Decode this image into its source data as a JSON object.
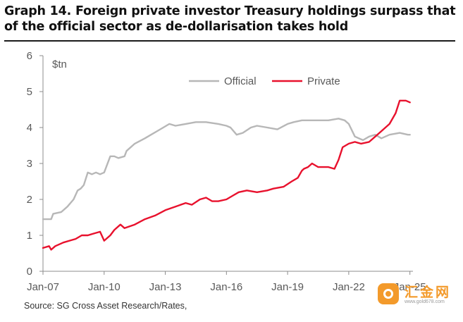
{
  "title": "Graph 14. Foreign private investor Treasury holdings surpass that of the official sector as de-dollarisation takes hold",
  "source": "Source: SG Cross Asset Research/Rates,",
  "watermark": {
    "text": "汇金网",
    "sub": "www.gold678.com"
  },
  "chart_data": {
    "type": "line",
    "ylabel": "$tn",
    "ylim": [
      0,
      6
    ],
    "yticks": [
      0,
      1,
      2,
      3,
      4,
      5,
      6
    ],
    "xlim": [
      2007.0,
      2025.15
    ],
    "xtick_labels": [
      "Jan-07",
      "Jan-10",
      "Jan-13",
      "Jan-16",
      "Jan-19",
      "Jan-22",
      "Jan-25"
    ],
    "xtick_values": [
      2007,
      2010,
      2013,
      2016,
      2019,
      2022,
      2025
    ],
    "grid": false,
    "legend": "top-center",
    "series": [
      {
        "name": "Official",
        "color": "#b7b7b7",
        "x": [
          2007.0,
          2007.4,
          2007.5,
          2007.9,
          2008.2,
          2008.5,
          2008.7,
          2008.85,
          2009.0,
          2009.2,
          2009.4,
          2009.6,
          2009.8,
          2010.0,
          2010.3,
          2010.5,
          2010.7,
          2011.0,
          2011.1,
          2011.5,
          2012.0,
          2012.3,
          2012.6,
          2012.9,
          2013.2,
          2013.5,
          2014.0,
          2014.5,
          2015.0,
          2015.6,
          2016.0,
          2016.2,
          2016.5,
          2016.8,
          2017.2,
          2017.5,
          2018.0,
          2018.5,
          2019.0,
          2019.3,
          2019.7,
          2020.0,
          2020.5,
          2021.0,
          2021.5,
          2021.8,
          2022.0,
          2022.3,
          2022.7,
          2023.0,
          2023.3,
          2023.6,
          2024.0,
          2024.5,
          2024.9,
          2025.0
        ],
        "values": [
          1.45,
          1.45,
          1.6,
          1.65,
          1.8,
          2.0,
          2.25,
          2.3,
          2.4,
          2.75,
          2.7,
          2.75,
          2.7,
          2.75,
          3.2,
          3.2,
          3.15,
          3.2,
          3.35,
          3.55,
          3.7,
          3.8,
          3.9,
          4.0,
          4.1,
          4.05,
          4.1,
          4.15,
          4.15,
          4.1,
          4.05,
          4.0,
          3.8,
          3.85,
          4.0,
          4.05,
          4.0,
          3.95,
          4.1,
          4.15,
          4.2,
          4.2,
          4.2,
          4.2,
          4.25,
          4.2,
          4.1,
          3.75,
          3.65,
          3.75,
          3.8,
          3.7,
          3.8,
          3.85,
          3.8,
          3.8
        ]
      },
      {
        "name": "Private",
        "color": "#e8112d",
        "x": [
          2007.0,
          2007.3,
          2007.4,
          2007.6,
          2008.0,
          2008.3,
          2008.6,
          2008.9,
          2009.2,
          2009.5,
          2009.8,
          2010.0,
          2010.3,
          2010.5,
          2010.8,
          2011.0,
          2011.5,
          2012.0,
          2012.5,
          2013.0,
          2013.5,
          2014.0,
          2014.3,
          2014.7,
          2015.0,
          2015.3,
          2015.6,
          2016.0,
          2016.3,
          2016.6,
          2017.0,
          2017.5,
          2018.0,
          2018.3,
          2018.8,
          2019.2,
          2019.5,
          2019.7,
          2019.8,
          2020.0,
          2020.2,
          2020.5,
          2021.0,
          2021.3,
          2021.5,
          2021.7,
          2022.0,
          2022.3,
          2022.6,
          2023.0,
          2023.3,
          2023.6,
          2024.0,
          2024.3,
          2024.5,
          2024.8,
          2025.0
        ],
        "values": [
          0.65,
          0.7,
          0.6,
          0.7,
          0.8,
          0.85,
          0.9,
          1.0,
          1.0,
          1.05,
          1.1,
          0.85,
          1.0,
          1.15,
          1.3,
          1.2,
          1.3,
          1.45,
          1.55,
          1.7,
          1.8,
          1.9,
          1.85,
          2.0,
          2.05,
          1.95,
          1.95,
          2.0,
          2.1,
          2.2,
          2.25,
          2.2,
          2.25,
          2.3,
          2.35,
          2.5,
          2.6,
          2.8,
          2.85,
          2.9,
          3.0,
          2.9,
          2.9,
          2.85,
          3.1,
          3.45,
          3.55,
          3.6,
          3.55,
          3.6,
          3.75,
          3.9,
          4.1,
          4.4,
          4.75,
          4.75,
          4.7
        ]
      }
    ]
  }
}
